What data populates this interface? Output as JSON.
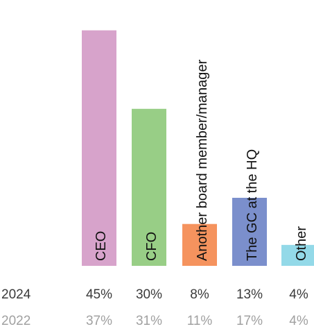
{
  "chart_data": {
    "type": "bar",
    "categories": [
      "CEO",
      "CFO",
      "Another board member/manager",
      "The GC at the HQ",
      "Other"
    ],
    "colors": [
      "#d7a3cb",
      "#98ce86",
      "#f5935e",
      "#7b8fcc",
      "#93d9e8"
    ],
    "series": [
      {
        "name": "2024",
        "values": [
          45,
          30,
          8,
          13,
          4
        ]
      },
      {
        "name": "2022",
        "values": [
          37,
          31,
          11,
          17,
          4
        ]
      }
    ],
    "bar_series": "2024",
    "value_suffix": "%",
    "ylim": [
      0,
      50
    ],
    "grid": false,
    "legend": "none"
  }
}
